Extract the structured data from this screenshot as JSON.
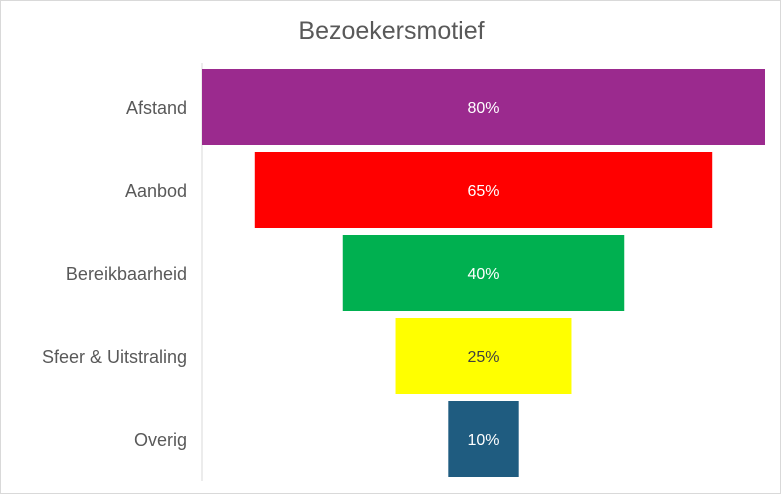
{
  "chart_data": {
    "type": "bar",
    "title": "Bezoekersmotief",
    "categories": [
      "Afstand",
      "Aanbod",
      "Bereikbaarheid",
      "Sfeer & Uitstraling",
      "Overig"
    ],
    "values": [
      80,
      65,
      40,
      25,
      10
    ],
    "value_labels": [
      "80%",
      "65%",
      "40%",
      "25%",
      "10%"
    ],
    "colors": [
      "#9b2a8e",
      "#ff0000",
      "#00b050",
      "#ffff00",
      "#1f5c80"
    ],
    "label_colors": [
      "#ffffff",
      "#ffffff",
      "#ffffff",
      "#404040",
      "#ffffff"
    ],
    "xlim": [
      0,
      80
    ],
    "grid": false,
    "legend": "none"
  }
}
